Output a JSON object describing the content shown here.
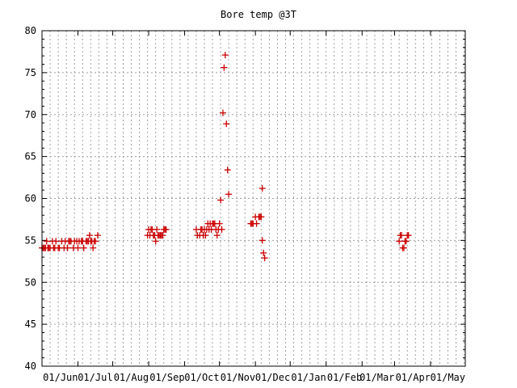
{
  "chart_data": {
    "type": "scatter",
    "title": "Bore temp @3T",
    "xlabel": "",
    "ylabel": "",
    "ylim": [
      40,
      80
    ],
    "yticks": [
      40,
      45,
      50,
      55,
      60,
      65,
      70,
      75,
      80
    ],
    "xlim": [
      "2005-05-01",
      "2006-05-01"
    ],
    "xtick_labels": [
      "01/Jun",
      "01/Jul",
      "01/Aug",
      "01/Sep",
      "01/Oct",
      "01/Nov",
      "01/Dec",
      "01/Jan",
      "01/Feb",
      "01/Mar",
      "01/Apr",
      "01/May"
    ],
    "xtick_dates": [
      "2005-06-01",
      "2005-07-01",
      "2005-08-01",
      "2005-09-01",
      "2005-10-01",
      "2005-11-01",
      "2005-12-01",
      "2006-01-01",
      "2006-02-01",
      "2006-03-01",
      "2006-04-01",
      "2006-05-01"
    ],
    "grid": true,
    "marker": "plus",
    "color": "#cc0000",
    "series": [
      {
        "points": [
          [
            "2005-05-01",
            54.1
          ],
          [
            "2005-05-02",
            54.1
          ],
          [
            "2005-05-03",
            54.1
          ],
          [
            "2005-05-04",
            54.1
          ],
          [
            "2005-05-05",
            54.9
          ],
          [
            "2005-05-06",
            54.1
          ],
          [
            "2005-05-07",
            54.1
          ],
          [
            "2005-05-08",
            54.1
          ],
          [
            "2005-05-10",
            54.9
          ],
          [
            "2005-05-11",
            54.1
          ],
          [
            "2005-05-12",
            54.1
          ],
          [
            "2005-05-13",
            54.9
          ],
          [
            "2005-05-15",
            54.1
          ],
          [
            "2005-05-16",
            54.1
          ],
          [
            "2005-05-18",
            54.9
          ],
          [
            "2005-05-20",
            54.1
          ],
          [
            "2005-05-21",
            54.9
          ],
          [
            "2005-05-23",
            54.1
          ],
          [
            "2005-05-24",
            54.9
          ],
          [
            "2005-05-25",
            54.9
          ],
          [
            "2005-05-26",
            54.9
          ],
          [
            "2005-05-28",
            54.1
          ],
          [
            "2005-05-29",
            54.9
          ],
          [
            "2005-05-31",
            54.9
          ],
          [
            "2005-06-01",
            54.1
          ],
          [
            "2005-06-02",
            54.9
          ],
          [
            "2005-06-04",
            54.9
          ],
          [
            "2005-06-05",
            54.9
          ],
          [
            "2005-06-06",
            54.1
          ],
          [
            "2005-06-08",
            54.9
          ],
          [
            "2005-06-09",
            54.9
          ],
          [
            "2005-06-10",
            54.9
          ],
          [
            "2005-06-11",
            55.6
          ],
          [
            "2005-06-12",
            54.9
          ],
          [
            "2005-06-13",
            54.9
          ],
          [
            "2005-06-14",
            54.1
          ],
          [
            "2005-06-15",
            54.9
          ],
          [
            "2005-06-16",
            54.9
          ],
          [
            "2005-06-18",
            55.6
          ],
          [
            "2005-07-31",
            55.6
          ],
          [
            "2005-08-01",
            56.3
          ],
          [
            "2005-08-02",
            55.6
          ],
          [
            "2005-08-03",
            56.3
          ],
          [
            "2005-08-04",
            56.3
          ],
          [
            "2005-08-05",
            55.6
          ],
          [
            "2005-08-06",
            55.6
          ],
          [
            "2005-08-07",
            54.9
          ],
          [
            "2005-08-08",
            56.3
          ],
          [
            "2005-08-09",
            55.6
          ],
          [
            "2005-08-10",
            55.6
          ],
          [
            "2005-08-11",
            55.6
          ],
          [
            "2005-08-12",
            55.6
          ],
          [
            "2005-08-13",
            55.6
          ],
          [
            "2005-08-14",
            56.3
          ],
          [
            "2005-08-15",
            56.3
          ],
          [
            "2005-08-16",
            56.3
          ],
          [
            "2005-09-11",
            56.3
          ],
          [
            "2005-09-12",
            55.6
          ],
          [
            "2005-09-14",
            55.6
          ],
          [
            "2005-09-15",
            56.3
          ],
          [
            "2005-09-16",
            56.3
          ],
          [
            "2005-09-17",
            55.6
          ],
          [
            "2005-09-18",
            56.3
          ],
          [
            "2005-09-19",
            55.6
          ],
          [
            "2005-09-20",
            56.3
          ],
          [
            "2005-09-21",
            57.0
          ],
          [
            "2005-09-22",
            56.3
          ],
          [
            "2005-09-23",
            57.0
          ],
          [
            "2005-09-24",
            56.3
          ],
          [
            "2005-09-25",
            57.0
          ],
          [
            "2005-09-26",
            57.0
          ],
          [
            "2005-09-27",
            57.0
          ],
          [
            "2005-09-28",
            56.3
          ],
          [
            "2005-09-29",
            55.6
          ],
          [
            "2005-09-30",
            56.3
          ],
          [
            "2005-10-01",
            57.0
          ],
          [
            "2005-10-02",
            59.8
          ],
          [
            "2005-10-03",
            56.3
          ],
          [
            "2005-10-04",
            70.2
          ],
          [
            "2005-10-05",
            75.6
          ],
          [
            "2005-10-06",
            77.1
          ],
          [
            "2005-10-07",
            68.9
          ],
          [
            "2005-10-08",
            63.4
          ],
          [
            "2005-10-09",
            60.5
          ],
          [
            "2005-10-28",
            57.0
          ],
          [
            "2005-10-29",
            57.0
          ],
          [
            "2005-10-30",
            57.0
          ],
          [
            "2005-11-01",
            57.8
          ],
          [
            "2005-11-02",
            57.0
          ],
          [
            "2005-11-04",
            57.8
          ],
          [
            "2005-11-05",
            57.8
          ],
          [
            "2005-11-06",
            57.8
          ],
          [
            "2005-11-07",
            61.2
          ],
          [
            "2005-11-07",
            55.0
          ],
          [
            "2005-11-08",
            53.5
          ],
          [
            "2005-11-09",
            52.9
          ],
          [
            "2006-03-05",
            54.9
          ],
          [
            "2006-03-06",
            55.6
          ],
          [
            "2006-03-07",
            55.6
          ],
          [
            "2006-03-08",
            54.1
          ],
          [
            "2006-03-09",
            54.1
          ],
          [
            "2006-03-10",
            54.9
          ],
          [
            "2006-03-11",
            54.9
          ],
          [
            "2006-03-12",
            55.6
          ],
          [
            "2006-03-13",
            55.6
          ]
        ]
      }
    ]
  }
}
